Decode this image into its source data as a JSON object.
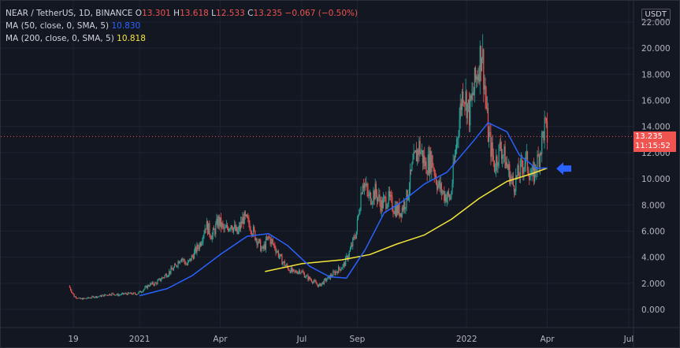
{
  "header": {
    "symbol": "NEAR / TetherUS, 1D, BINANCE",
    "o_label": "O",
    "o_value": "13.301",
    "h_label": "H",
    "h_value": "13.618",
    "l_label": "L",
    "l_value": "12.533",
    "c_label": "C",
    "c_value": "13.235",
    "change": "−0.067 (−0.50%)"
  },
  "indicators": [
    {
      "label": "MA (50, close, 0, SMA, 5)",
      "value": "10.830",
      "color": "#2962ff"
    },
    {
      "label": "MA (200, close, 0, SMA, 5)",
      "value": "10.818",
      "color": "#f5e63b"
    }
  ],
  "currency_label": "USDT",
  "price_badge": {
    "price": "13.235",
    "countdown": "11:15:52",
    "color": "#f05451"
  },
  "annotation": {
    "icon": "arrow-left-icon",
    "color": "#2962ff"
  },
  "colors": {
    "up": "#26a69a",
    "down": "#ef5350",
    "background": "#131722",
    "grid": "#1f2330",
    "axis_text": "#b2b5be"
  },
  "chart_data": {
    "type": "candlestick",
    "y_ticks": [
      "0.000",
      "2.000",
      "4.000",
      "6.000",
      "8.000",
      "10.000",
      "12.000",
      "14.000",
      "16.000",
      "18.000",
      "20.000",
      "22.000"
    ],
    "ylim": [
      -1.3,
      23.6
    ],
    "x_ticks": [
      "19",
      "2021",
      "Apr",
      "Jul",
      "Sep",
      "2022",
      "Apr",
      "Jul"
    ],
    "x_tick_dates": [
      "2020-10-19",
      "2021-01-01",
      "2021-04-01",
      "2021-07-01",
      "2021-09-01",
      "2022-01-01",
      "2022-04-01",
      "2022-07-01"
    ],
    "last_price": 13.235,
    "close_series": [
      [
        "2020-10-14",
        1.8
      ],
      [
        "2020-10-20",
        1.0
      ],
      [
        "2020-10-27",
        0.8
      ],
      [
        "2020-11-03",
        0.85
      ],
      [
        "2020-11-10",
        0.95
      ],
      [
        "2020-11-17",
        1.0
      ],
      [
        "2020-11-24",
        1.1
      ],
      [
        "2020-12-01",
        1.2
      ],
      [
        "2020-12-08",
        1.1
      ],
      [
        "2020-12-15",
        1.2
      ],
      [
        "2020-12-22",
        1.2
      ],
      [
        "2020-12-29",
        1.2
      ],
      [
        "2021-01-05",
        1.5
      ],
      [
        "2021-01-12",
        1.9
      ],
      [
        "2021-01-19",
        2.0
      ],
      [
        "2021-01-26",
        2.4
      ],
      [
        "2021-02-02",
        2.8
      ],
      [
        "2021-02-09",
        3.2
      ],
      [
        "2021-02-16",
        4.0
      ],
      [
        "2021-02-23",
        3.4
      ],
      [
        "2021-03-02",
        4.2
      ],
      [
        "2021-03-09",
        5.0
      ],
      [
        "2021-03-16",
        6.5
      ],
      [
        "2021-03-23",
        5.6
      ],
      [
        "2021-03-30",
        6.8
      ],
      [
        "2021-04-06",
        6.0
      ],
      [
        "2021-04-13",
        6.6
      ],
      [
        "2021-04-20",
        5.8
      ],
      [
        "2021-04-27",
        7.0
      ],
      [
        "2021-05-04",
        6.5
      ],
      [
        "2021-05-11",
        5.5
      ],
      [
        "2021-05-18",
        4.5
      ],
      [
        "2021-05-25",
        5.5
      ],
      [
        "2021-06-01",
        4.8
      ],
      [
        "2021-06-08",
        3.8
      ],
      [
        "2021-06-15",
        3.2
      ],
      [
        "2021-06-22",
        2.8
      ],
      [
        "2021-06-29",
        3.0
      ],
      [
        "2021-07-06",
        2.5
      ],
      [
        "2021-07-13",
        2.2
      ],
      [
        "2021-07-20",
        1.8
      ],
      [
        "2021-07-27",
        2.2
      ],
      [
        "2021-08-03",
        2.6
      ],
      [
        "2021-08-10",
        3.0
      ],
      [
        "2021-08-17",
        3.4
      ],
      [
        "2021-08-24",
        4.5
      ],
      [
        "2021-08-31",
        6.0
      ],
      [
        "2021-09-07",
        10.0
      ],
      [
        "2021-09-14",
        8.5
      ],
      [
        "2021-09-21",
        9.0
      ],
      [
        "2021-09-28",
        8.0
      ],
      [
        "2021-10-05",
        8.5
      ],
      [
        "2021-10-12",
        7.8
      ],
      [
        "2021-10-19",
        7.5
      ],
      [
        "2021-10-26",
        8.5
      ],
      [
        "2021-11-02",
        11.0
      ],
      [
        "2021-11-09",
        12.5
      ],
      [
        "2021-11-16",
        11.0
      ],
      [
        "2021-11-23",
        11.5
      ],
      [
        "2021-11-30",
        9.5
      ],
      [
        "2021-12-07",
        8.8
      ],
      [
        "2021-12-14",
        8.5
      ],
      [
        "2021-12-21",
        13.0
      ],
      [
        "2021-12-28",
        17.0
      ],
      [
        "2022-01-04",
        15.0
      ],
      [
        "2022-01-11",
        17.5
      ],
      [
        "2022-01-18",
        20.0
      ],
      [
        "2022-01-25",
        13.5
      ],
      [
        "2022-02-01",
        11.0
      ],
      [
        "2022-02-08",
        12.5
      ],
      [
        "2022-02-15",
        11.0
      ],
      [
        "2022-02-22",
        9.5
      ],
      [
        "2022-03-01",
        10.5
      ],
      [
        "2022-03-08",
        11.5
      ],
      [
        "2022-03-15",
        10.0
      ],
      [
        "2022-03-22",
        11.5
      ],
      [
        "2022-03-29",
        14.0
      ],
      [
        "2022-04-01",
        13.24
      ]
    ],
    "ma50": [
      [
        "2021-01-01",
        1.05
      ],
      [
        "2021-02-01",
        1.6
      ],
      [
        "2021-03-01",
        2.6
      ],
      [
        "2021-04-01",
        4.2
      ],
      [
        "2021-05-01",
        5.6
      ],
      [
        "2021-05-25",
        5.8
      ],
      [
        "2021-06-15",
        4.9
      ],
      [
        "2021-07-10",
        3.3
      ],
      [
        "2021-08-01",
        2.5
      ],
      [
        "2021-08-20",
        2.4
      ],
      [
        "2021-09-10",
        4.6
      ],
      [
        "2021-10-01",
        7.4
      ],
      [
        "2021-10-20",
        8.2
      ],
      [
        "2021-11-15",
        9.6
      ],
      [
        "2021-12-10",
        10.5
      ],
      [
        "2022-01-10",
        13.0
      ],
      [
        "2022-01-25",
        14.3
      ],
      [
        "2022-02-15",
        13.6
      ],
      [
        "2022-03-01",
        11.8
      ],
      [
        "2022-03-20",
        10.8
      ],
      [
        "2022-04-01",
        10.83
      ]
    ],
    "ma200": [
      [
        "2021-05-21",
        2.9
      ],
      [
        "2021-07-01",
        3.5
      ],
      [
        "2021-08-15",
        3.8
      ],
      [
        "2021-09-15",
        4.2
      ],
      [
        "2021-10-15",
        5.0
      ],
      [
        "2021-11-15",
        5.7
      ],
      [
        "2021-12-15",
        6.9
      ],
      [
        "2022-01-15",
        8.5
      ],
      [
        "2022-02-15",
        9.8
      ],
      [
        "2022-03-15",
        10.4
      ],
      [
        "2022-04-01",
        10.82
      ]
    ]
  }
}
